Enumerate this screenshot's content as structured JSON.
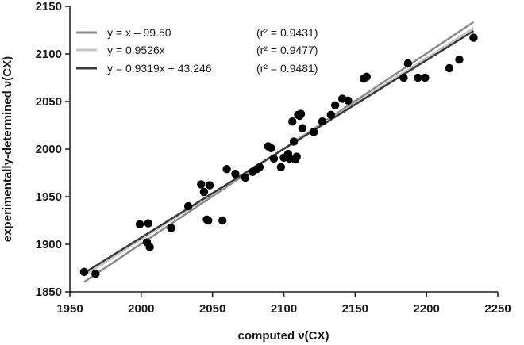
{
  "chart_data": {
    "type": "scatter",
    "xlabel": "computed ν(CX)",
    "ylabel": "experimentally-determined ν(CX)",
    "xlim": [
      1950,
      2250
    ],
    "ylim": [
      1850,
      2150
    ],
    "xticks": [
      "1950",
      "2000",
      "2050",
      "2100",
      "2150",
      "2200",
      "2250"
    ],
    "yticks": [
      "1850",
      "1900",
      "1950",
      "2000",
      "2050",
      "2100",
      "2150"
    ],
    "grid": false,
    "legend_position": "top-left",
    "points": [
      [
        1960,
        1871
      ],
      [
        1968,
        1869
      ],
      [
        1999,
        1921
      ],
      [
        2004,
        1902
      ],
      [
        2005,
        1922
      ],
      [
        2006,
        1897
      ],
      [
        2021,
        1917
      ],
      [
        2033,
        1940
      ],
      [
        2042,
        1963
      ],
      [
        2044,
        1955
      ],
      [
        2046,
        1926
      ],
      [
        2047,
        1925
      ],
      [
        2048,
        1962
      ],
      [
        2057,
        1925
      ],
      [
        2060,
        1979
      ],
      [
        2066,
        1974
      ],
      [
        2073,
        1970
      ],
      [
        2078,
        1976
      ],
      [
        2081,
        1979
      ],
      [
        2083,
        1981
      ],
      [
        2089,
        2003
      ],
      [
        2091,
        2001
      ],
      [
        2093,
        1990
      ],
      [
        2098,
        1981
      ],
      [
        2100,
        1991
      ],
      [
        2103,
        1995
      ],
      [
        2104,
        1990
      ],
      [
        2106,
        2029
      ],
      [
        2107,
        2008
      ],
      [
        2108,
        1989
      ],
      [
        2109,
        1992
      ],
      [
        2110,
        2036
      ],
      [
        2111,
        2035
      ],
      [
        2112,
        2037
      ],
      [
        2113,
        2022
      ],
      [
        2121,
        2018
      ],
      [
        2127,
        2029
      ],
      [
        2133,
        2036
      ],
      [
        2136,
        2046
      ],
      [
        2141,
        2053
      ],
      [
        2145,
        2051
      ],
      [
        2156,
        2074
      ],
      [
        2158,
        2076
      ],
      [
        2184,
        2075
      ],
      [
        2187,
        2090
      ],
      [
        2194,
        2075
      ],
      [
        2199,
        2075
      ],
      [
        2216,
        2085
      ],
      [
        2223,
        2094
      ],
      [
        2233,
        2117
      ]
    ],
    "lines": [
      {
        "equation": "y = x – 99.50",
        "r2_label": "(r² = 0.9431)",
        "slope": 1.0,
        "intercept": -99.5,
        "color": "#8a8a8a"
      },
      {
        "equation": "y = 0.9526x",
        "r2_label": "(r² = 0.9477)",
        "slope": 0.9526,
        "intercept": 0,
        "color": "#c4c4c4"
      },
      {
        "equation": "y = 0.9319x + 43.246",
        "r2_label": "(r² = 0.9481)",
        "slope": 0.9319,
        "intercept": 43.246,
        "color": "#3a3a3a"
      }
    ]
  }
}
